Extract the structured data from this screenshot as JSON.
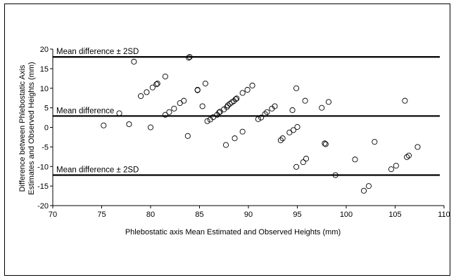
{
  "chart_data": {
    "type": "scatter",
    "title": "",
    "xlabel": "Phlebostatic axis Mean Estimated and Observed Heights (mm)",
    "ylabel_lines": [
      "Difference between Phlebostatic Axis",
      "Estimates and Observed Heights (mm)"
    ],
    "xlim": [
      70,
      110
    ],
    "ylim": [
      -20,
      20
    ],
    "xticks": [
      "70",
      "75",
      "80",
      "85",
      "90",
      "95",
      "100",
      "105",
      "110"
    ],
    "yticks": [
      "20",
      "15",
      "10",
      "5",
      "0",
      "-5",
      "-10",
      "-15",
      "-20"
    ],
    "grid": false,
    "marker": "open-circle",
    "color": "#000000",
    "reference_lines": [
      {
        "label": "Mean difference ± 2SD",
        "y": 18
      },
      {
        "label": "Mean difference",
        "y": 2.9
      },
      {
        "label": "Mean difference ± 2SD",
        "y": -12.2
      }
    ],
    "points": [
      {
        "x": 75.2,
        "y": 0.5
      },
      {
        "x": 76.8,
        "y": 3.6
      },
      {
        "x": 77.8,
        "y": 0.8
      },
      {
        "x": 78.3,
        "y": 16.8
      },
      {
        "x": 79.0,
        "y": 8.0
      },
      {
        "x": 79.6,
        "y": 9.0
      },
      {
        "x": 80.0,
        "y": 0.0
      },
      {
        "x": 80.2,
        "y": 10.2
      },
      {
        "x": 80.6,
        "y": 11.0
      },
      {
        "x": 80.7,
        "y": 11.2
      },
      {
        "x": 81.5,
        "y": 3.2
      },
      {
        "x": 81.5,
        "y": 13.0
      },
      {
        "x": 81.9,
        "y": 3.9
      },
      {
        "x": 82.4,
        "y": 4.8
      },
      {
        "x": 83.0,
        "y": 6.2
      },
      {
        "x": 83.4,
        "y": 6.8
      },
      {
        "x": 83.8,
        "y": -2.2
      },
      {
        "x": 83.9,
        "y": 17.8
      },
      {
        "x": 84.0,
        "y": 18.0
      },
      {
        "x": 84.8,
        "y": 9.5
      },
      {
        "x": 84.8,
        "y": 9.6
      },
      {
        "x": 85.3,
        "y": 5.4
      },
      {
        "x": 85.6,
        "y": 11.2
      },
      {
        "x": 85.8,
        "y": 1.6
      },
      {
        "x": 86.1,
        "y": 2.0
      },
      {
        "x": 86.4,
        "y": 2.6
      },
      {
        "x": 86.8,
        "y": 3.2
      },
      {
        "x": 87.0,
        "y": 3.8
      },
      {
        "x": 87.1,
        "y": 4.0
      },
      {
        "x": 87.5,
        "y": 4.6
      },
      {
        "x": 87.8,
        "y": 5.2
      },
      {
        "x": 87.7,
        "y": -4.5
      },
      {
        "x": 87.9,
        "y": 5.6
      },
      {
        "x": 88.1,
        "y": 6.0
      },
      {
        "x": 88.3,
        "y": 6.4
      },
      {
        "x": 88.5,
        "y": 6.7
      },
      {
        "x": 88.7,
        "y": 7.2
      },
      {
        "x": 88.8,
        "y": 7.4
      },
      {
        "x": 88.6,
        "y": -2.8
      },
      {
        "x": 89.4,
        "y": 8.8
      },
      {
        "x": 89.4,
        "y": -1.1
      },
      {
        "x": 89.9,
        "y": 9.6
      },
      {
        "x": 90.4,
        "y": 10.7
      },
      {
        "x": 91.0,
        "y": 2.1
      },
      {
        "x": 91.3,
        "y": 2.5
      },
      {
        "x": 91.7,
        "y": 3.4
      },
      {
        "x": 91.9,
        "y": 3.9
      },
      {
        "x": 92.4,
        "y": 4.8
      },
      {
        "x": 92.7,
        "y": 5.4
      },
      {
        "x": 93.3,
        "y": -3.3
      },
      {
        "x": 93.5,
        "y": -2.8
      },
      {
        "x": 94.2,
        "y": -1.3
      },
      {
        "x": 94.5,
        "y": 4.4
      },
      {
        "x": 94.6,
        "y": -0.7
      },
      {
        "x": 94.9,
        "y": 10.0
      },
      {
        "x": 95.0,
        "y": 0.1
      },
      {
        "x": 94.9,
        "y": -10.1
      },
      {
        "x": 95.6,
        "y": -8.9
      },
      {
        "x": 95.8,
        "y": 6.8
      },
      {
        "x": 95.9,
        "y": -8.0
      },
      {
        "x": 97.5,
        "y": 5.0
      },
      {
        "x": 97.8,
        "y": -4.1
      },
      {
        "x": 97.9,
        "y": -4.3
      },
      {
        "x": 98.2,
        "y": 6.5
      },
      {
        "x": 98.9,
        "y": -12.2
      },
      {
        "x": 100.9,
        "y": -8.2
      },
      {
        "x": 101.8,
        "y": -16.2
      },
      {
        "x": 102.3,
        "y": -15.0
      },
      {
        "x": 102.9,
        "y": -3.7
      },
      {
        "x": 104.6,
        "y": -10.7
      },
      {
        "x": 105.1,
        "y": -9.8
      },
      {
        "x": 106.0,
        "y": 6.8
      },
      {
        "x": 106.2,
        "y": -7.6
      },
      {
        "x": 106.4,
        "y": -7.2
      },
      {
        "x": 107.3,
        "y": -5.0
      }
    ]
  }
}
